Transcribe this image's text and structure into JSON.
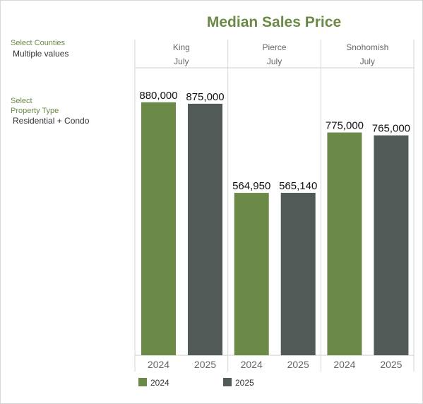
{
  "filters": {
    "counties_label": "Select Counties",
    "counties_value": "Multiple values",
    "type_label_1": "Select",
    "type_label_2": "Property Type",
    "type_value": "Residential + Condo"
  },
  "chart_data": {
    "type": "bar",
    "title": "Median Sales Price",
    "month": "July",
    "groups": [
      {
        "county": "King",
        "values": [
          880000,
          875000
        ],
        "labels": [
          "880,000",
          "875,000"
        ]
      },
      {
        "county": "Pierce",
        "values": [
          564950,
          565140
        ],
        "labels": [
          "564,950",
          "565,140"
        ]
      },
      {
        "county": "Snohomish",
        "values": [
          775000,
          765000
        ],
        "labels": [
          "775,000",
          "765,000"
        ]
      }
    ],
    "series": [
      {
        "name": "2024",
        "color": "#6b8a47"
      },
      {
        "name": "2025",
        "color": "#525a58"
      }
    ],
    "ylim": [
      0,
      1000000
    ],
    "legend_position": "bottom-left"
  }
}
